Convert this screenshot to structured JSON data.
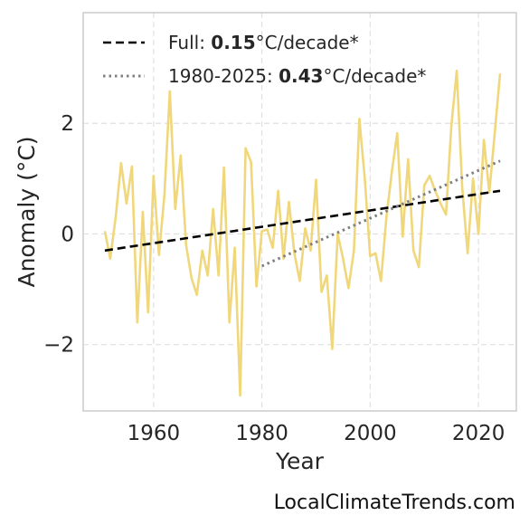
{
  "chart_data": {
    "type": "line",
    "xlabel": "Year",
    "ylabel": "Anomaly (°C)",
    "xlim": [
      1947,
      2027
    ],
    "ylim": [
      -3.2,
      4.0
    ],
    "xticks": [
      1960,
      1980,
      2000,
      2020
    ],
    "yticks": [
      -2,
      0,
      2
    ],
    "ytick_labels": [
      "−2",
      "0",
      "2"
    ],
    "grid": true,
    "legend_position": "top-left",
    "colors": {
      "series": "#f0d77b",
      "full_trend": "#000000",
      "recent_trend": "#808080",
      "grid": "#e0e0e0",
      "frame": "#cccccc"
    },
    "series": [
      {
        "x": [
          1951,
          1952,
          1953,
          1954,
          1955,
          1956,
          1957,
          1958,
          1959,
          1960,
          1961,
          1962,
          1963,
          1964,
          1965,
          1966,
          1967,
          1968,
          1969,
          1970,
          1971,
          1972,
          1973,
          1974,
          1975,
          1976,
          1977,
          1978,
          1979,
          1980,
          1981,
          1982,
          1983,
          1984,
          1985,
          1986,
          1987,
          1988,
          1989,
          1990,
          1991,
          1992,
          1993,
          1994,
          1995,
          1996,
          1997,
          1998,
          1999,
          2000,
          2001,
          2002,
          2003,
          2004,
          2005,
          2006,
          2007,
          2008,
          2009,
          2010,
          2011,
          2012,
          2013,
          2014,
          2015,
          2016,
          2017,
          2018,
          2019,
          2020,
          2021,
          2022,
          2023,
          2024
        ],
        "values": [
          0.05,
          -0.45,
          0.3,
          1.28,
          0.55,
          1.22,
          -1.6,
          0.4,
          -1.42,
          1.05,
          -0.38,
          0.7,
          2.58,
          0.45,
          1.42,
          -0.2,
          -0.8,
          -1.1,
          -0.3,
          -0.75,
          0.45,
          -0.75,
          1.2,
          -1.6,
          -0.25,
          -2.92,
          1.55,
          1.3,
          -0.95,
          0.05,
          0.08,
          -0.25,
          0.78,
          -0.45,
          0.58,
          -0.35,
          -0.85,
          0.1,
          -0.3,
          0.98,
          -1.05,
          -0.75,
          -2.08,
          0.0,
          -0.45,
          -0.98,
          -0.3,
          2.08,
          1.0,
          -0.4,
          -0.35,
          -0.85,
          0.3,
          1.12,
          1.82,
          -0.05,
          1.35,
          -0.3,
          -0.6,
          0.88,
          1.05,
          0.78,
          0.55,
          0.35,
          1.95,
          2.95,
          0.85,
          -0.35,
          1.0,
          0.0,
          1.7,
          0.75,
          1.8,
          2.9
        ]
      }
    ],
    "trends": [
      {
        "label_prefix": "Full: ",
        "value": "0.15",
        "label_suffix": "°C/decade*",
        "style": "dashed",
        "x": [
          1951,
          2024
        ],
        "y": [
          -0.3,
          0.78
        ]
      },
      {
        "label_prefix": "1980-2025: ",
        "value": "0.43",
        "label_suffix": "°C/decade*",
        "style": "dotted",
        "x": [
          1980,
          2024
        ],
        "y": [
          -0.58,
          1.32
        ]
      }
    ]
  },
  "watermark": "LocalClimateTrends.com"
}
